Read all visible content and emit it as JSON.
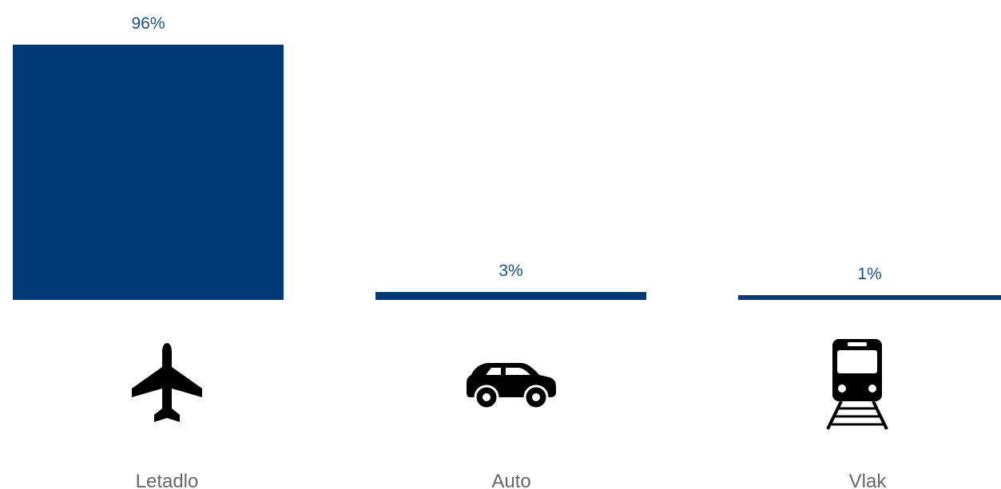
{
  "chart_data": {
    "type": "bar",
    "categories": [
      "Letadlo",
      "Auto",
      "Vlak"
    ],
    "values": [
      96,
      3,
      1
    ],
    "value_labels": [
      "96%",
      "3%",
      "1%"
    ],
    "icons": [
      "airplane-icon",
      "car-icon",
      "train-icon"
    ],
    "unit": "%",
    "ylim": [
      0,
      96
    ],
    "grid": false,
    "bar_color": "#003a78",
    "label_color": "#1f4e87",
    "category_label_color": "#666666"
  }
}
